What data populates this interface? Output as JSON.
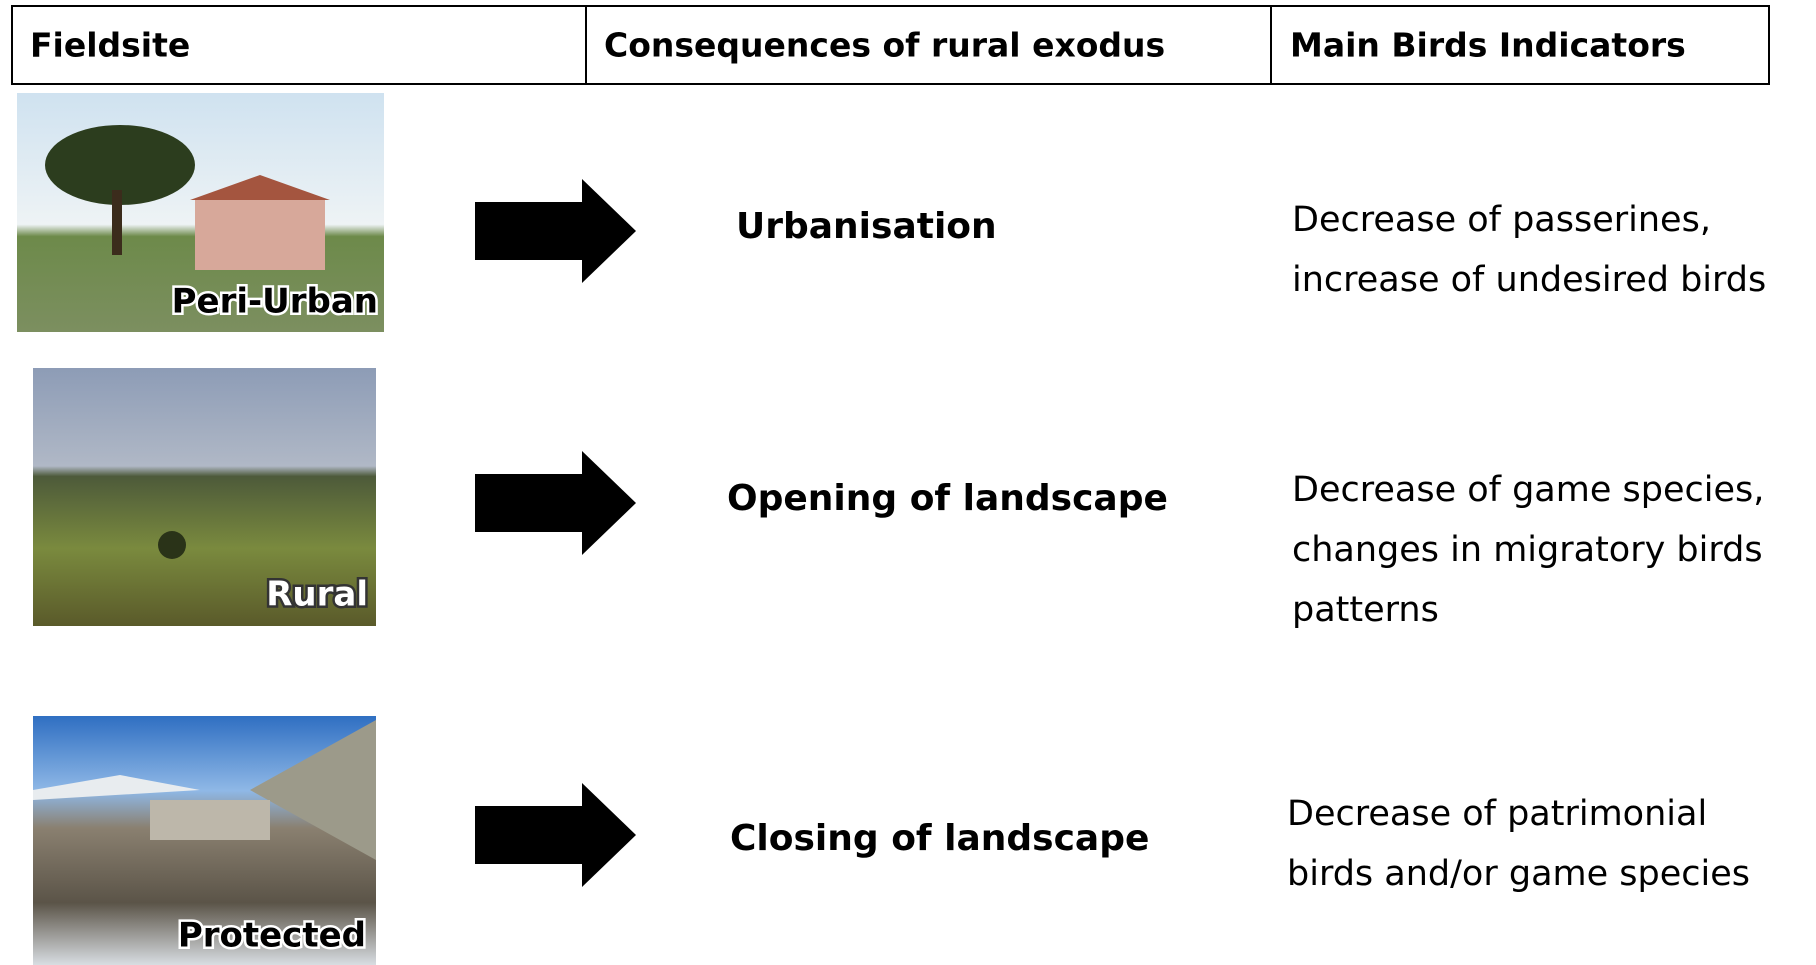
{
  "header": {
    "columns": [
      "Fieldsite",
      "Consequences of rural exodus",
      "Main Birds Indicators"
    ]
  },
  "rows": [
    {
      "fieldsite": "Peri-Urban",
      "consequence": "Urbanisation",
      "indicators": [
        "Decrease of passerines,",
        "increase of undesired birds"
      ]
    },
    {
      "fieldsite": "Rural",
      "consequence": "Opening of landscape",
      "indicators": [
        "Decrease of game species,",
        "changes in migratory birds",
        "patterns"
      ]
    },
    {
      "fieldsite": "Protected",
      "consequence": "Closing of landscape",
      "indicators": [
        "Decrease of patrimonial",
        "birds and/or game species"
      ]
    }
  ]
}
